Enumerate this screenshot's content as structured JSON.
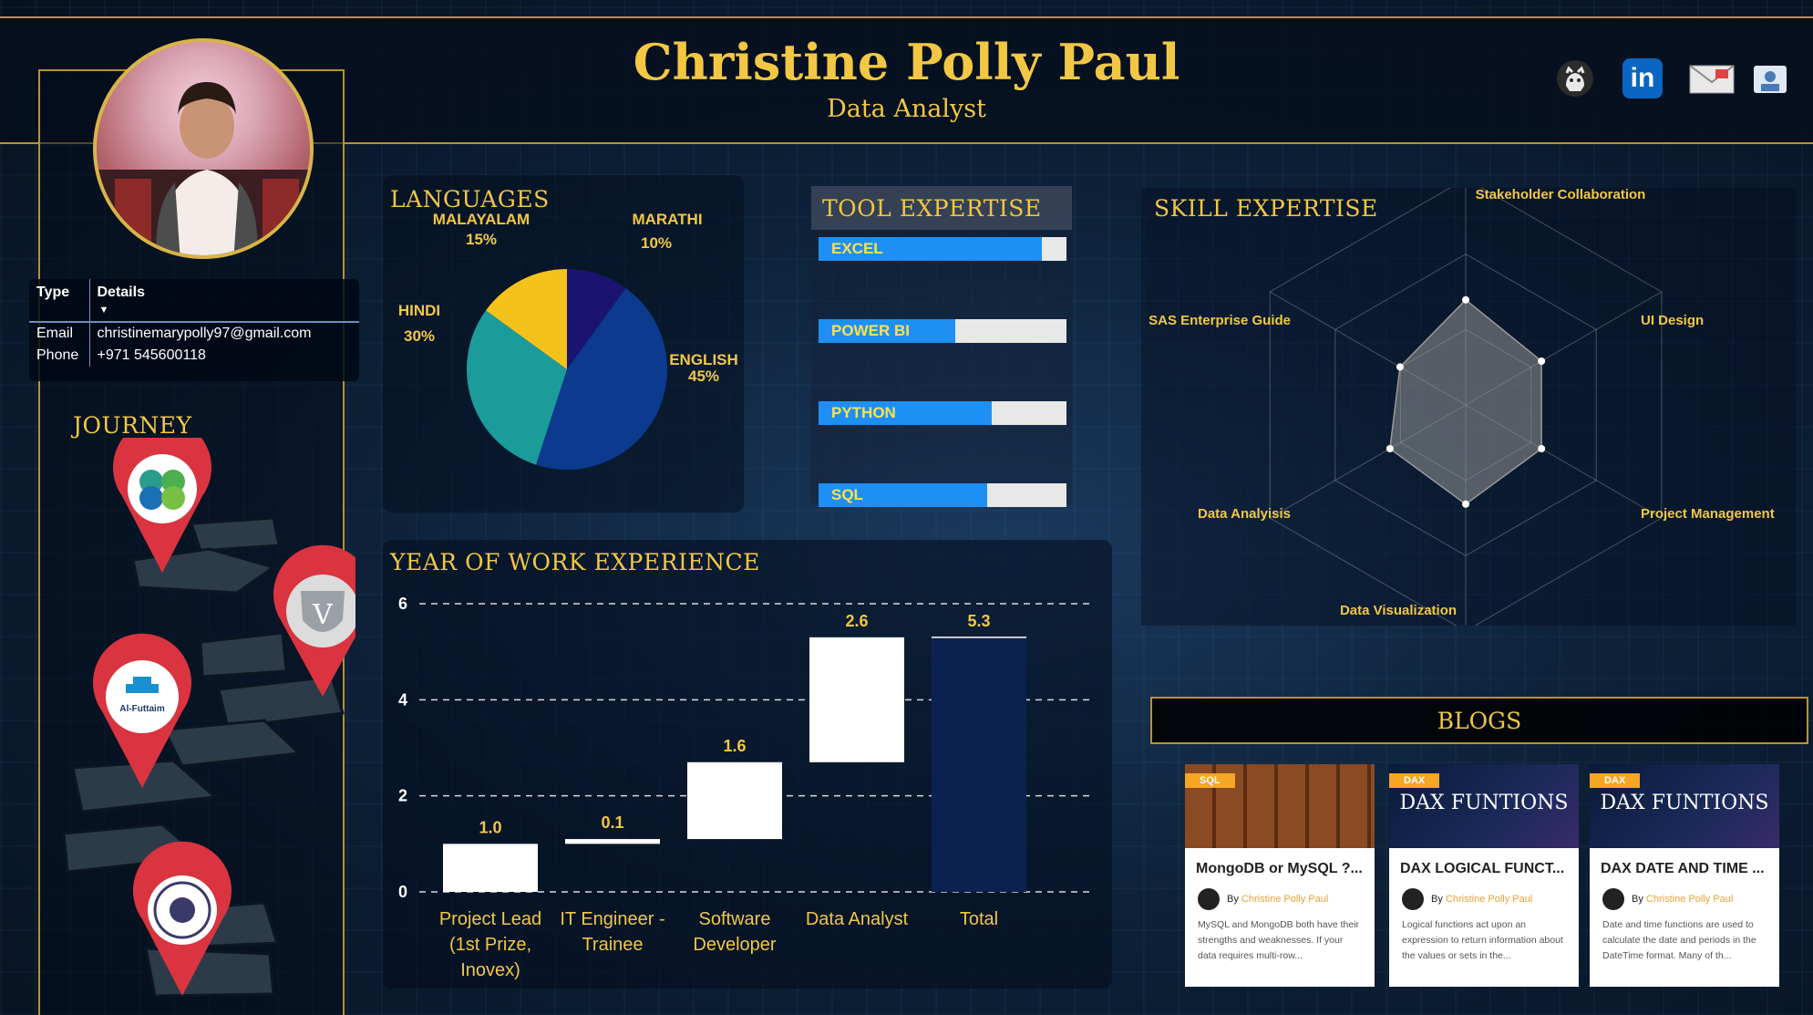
{
  "header": {
    "name": "Christine Polly Paul",
    "role": "Data Analyst",
    "links": [
      {
        "icon": "github-icon"
      },
      {
        "icon": "linkedin-icon",
        "label": "in"
      },
      {
        "icon": "email-icon"
      },
      {
        "icon": "portfolio-icon"
      }
    ]
  },
  "contact": {
    "col_type": "Type",
    "col_details": "Details",
    "rows": [
      {
        "type": "Email",
        "details": "christinemarypolly97@gmail.com"
      },
      {
        "type": "Phone",
        "details": "+971 545600118"
      }
    ]
  },
  "journey": {
    "title": "JOURNEY",
    "pins": [
      {
        "icon": "inovex-logo-icon"
      },
      {
        "icon": "varac-logo-icon",
        "label": "V"
      },
      {
        "icon": "al-futtaim-logo-icon",
        "label": "Al-Futtaim"
      },
      {
        "icon": "university-seal-icon"
      }
    ]
  },
  "languages": {
    "title": "LANGUAGES",
    "chart_data": {
      "type": "pie",
      "slices": [
        {
          "label": "ENGLISH",
          "pct_label": "45%",
          "value": 45,
          "color": "#0b3a8f"
        },
        {
          "label": "HINDI",
          "pct_label": "30%",
          "value": 30,
          "color": "#1c9b9b"
        },
        {
          "label": "MALAYALAM",
          "pct_label": "15%",
          "value": 15,
          "color": "#f5c21b"
        },
        {
          "label": "MARATHI",
          "pct_label": "10%",
          "value": 10,
          "color": "#1a1470"
        }
      ]
    }
  },
  "tools": {
    "title": "TOOL EXPERTISE",
    "chart_data": {
      "type": "bar",
      "categories": [
        "EXCEL",
        "POWER BI",
        "PYTHON",
        "SQL"
      ],
      "values": [
        0.9,
        0.55,
        0.7,
        0.68
      ],
      "color": "#1e90f5"
    }
  },
  "skills": {
    "title": "SKILL EXPERTISE",
    "chart_data": {
      "type": "radar",
      "axes": [
        "Stakeholder Collaboration",
        "UI Design",
        "Project Management",
        "Data Visualization",
        "Data Analyisis",
        "SAS Enterprise Guide"
      ],
      "values": [
        0.9,
        0.75,
        0.75,
        0.85,
        0.75,
        0.65
      ]
    }
  },
  "experience": {
    "title": "YEAR OF WORK EXPERIENCE",
    "chart_data": {
      "type": "bar",
      "subtype": "waterfall",
      "categories": [
        "Project Lead (1st Prize, Inovex)",
        "IT Engineer - Trainee",
        "Software Developer",
        "Data Analyst",
        "Total"
      ],
      "category_lines": [
        [
          "Project Lead",
          "(1st Prize,",
          "Inovex)"
        ],
        [
          "IT Engineer -",
          "Trainee"
        ],
        [
          "Software",
          "Developer"
        ],
        [
          "Data Analyst"
        ],
        [
          "Total"
        ]
      ],
      "values": [
        1.0,
        0.1,
        1.6,
        2.6,
        5.3
      ],
      "value_labels": [
        "1.0",
        "0.1",
        "1.6",
        "2.6",
        "5.3"
      ],
      "ylim": [
        0,
        6
      ],
      "yticks": [
        "0",
        "2",
        "4",
        "6"
      ],
      "grid": true
    }
  },
  "blogs": {
    "title": "BLOGS",
    "posts": [
      {
        "tag": "SQL",
        "banner": "",
        "title": "MongoDB or MySQL ?...",
        "by": "By",
        "author": "Christine Polly Paul",
        "excerpt": "MySQL and MongoDB both have their strengths and weaknesses. If your data requires multi-row..."
      },
      {
        "tag": "DAX",
        "banner": "DAX FUNTIONS",
        "title": "DAX LOGICAL FUNCT...",
        "by": "By",
        "author": "Christine Polly Paul",
        "excerpt": "Logical functions act upon an expression to return information about the values or sets in the..."
      },
      {
        "tag": "DAX",
        "banner": "DAX FUNTIONS",
        "title": "DAX DATE AND TIME ...",
        "by": "By",
        "author": "Christine Polly Paul",
        "excerpt": "Date and time functions are used to calculate the date and periods in the DateTime format. Many of th..."
      }
    ]
  }
}
